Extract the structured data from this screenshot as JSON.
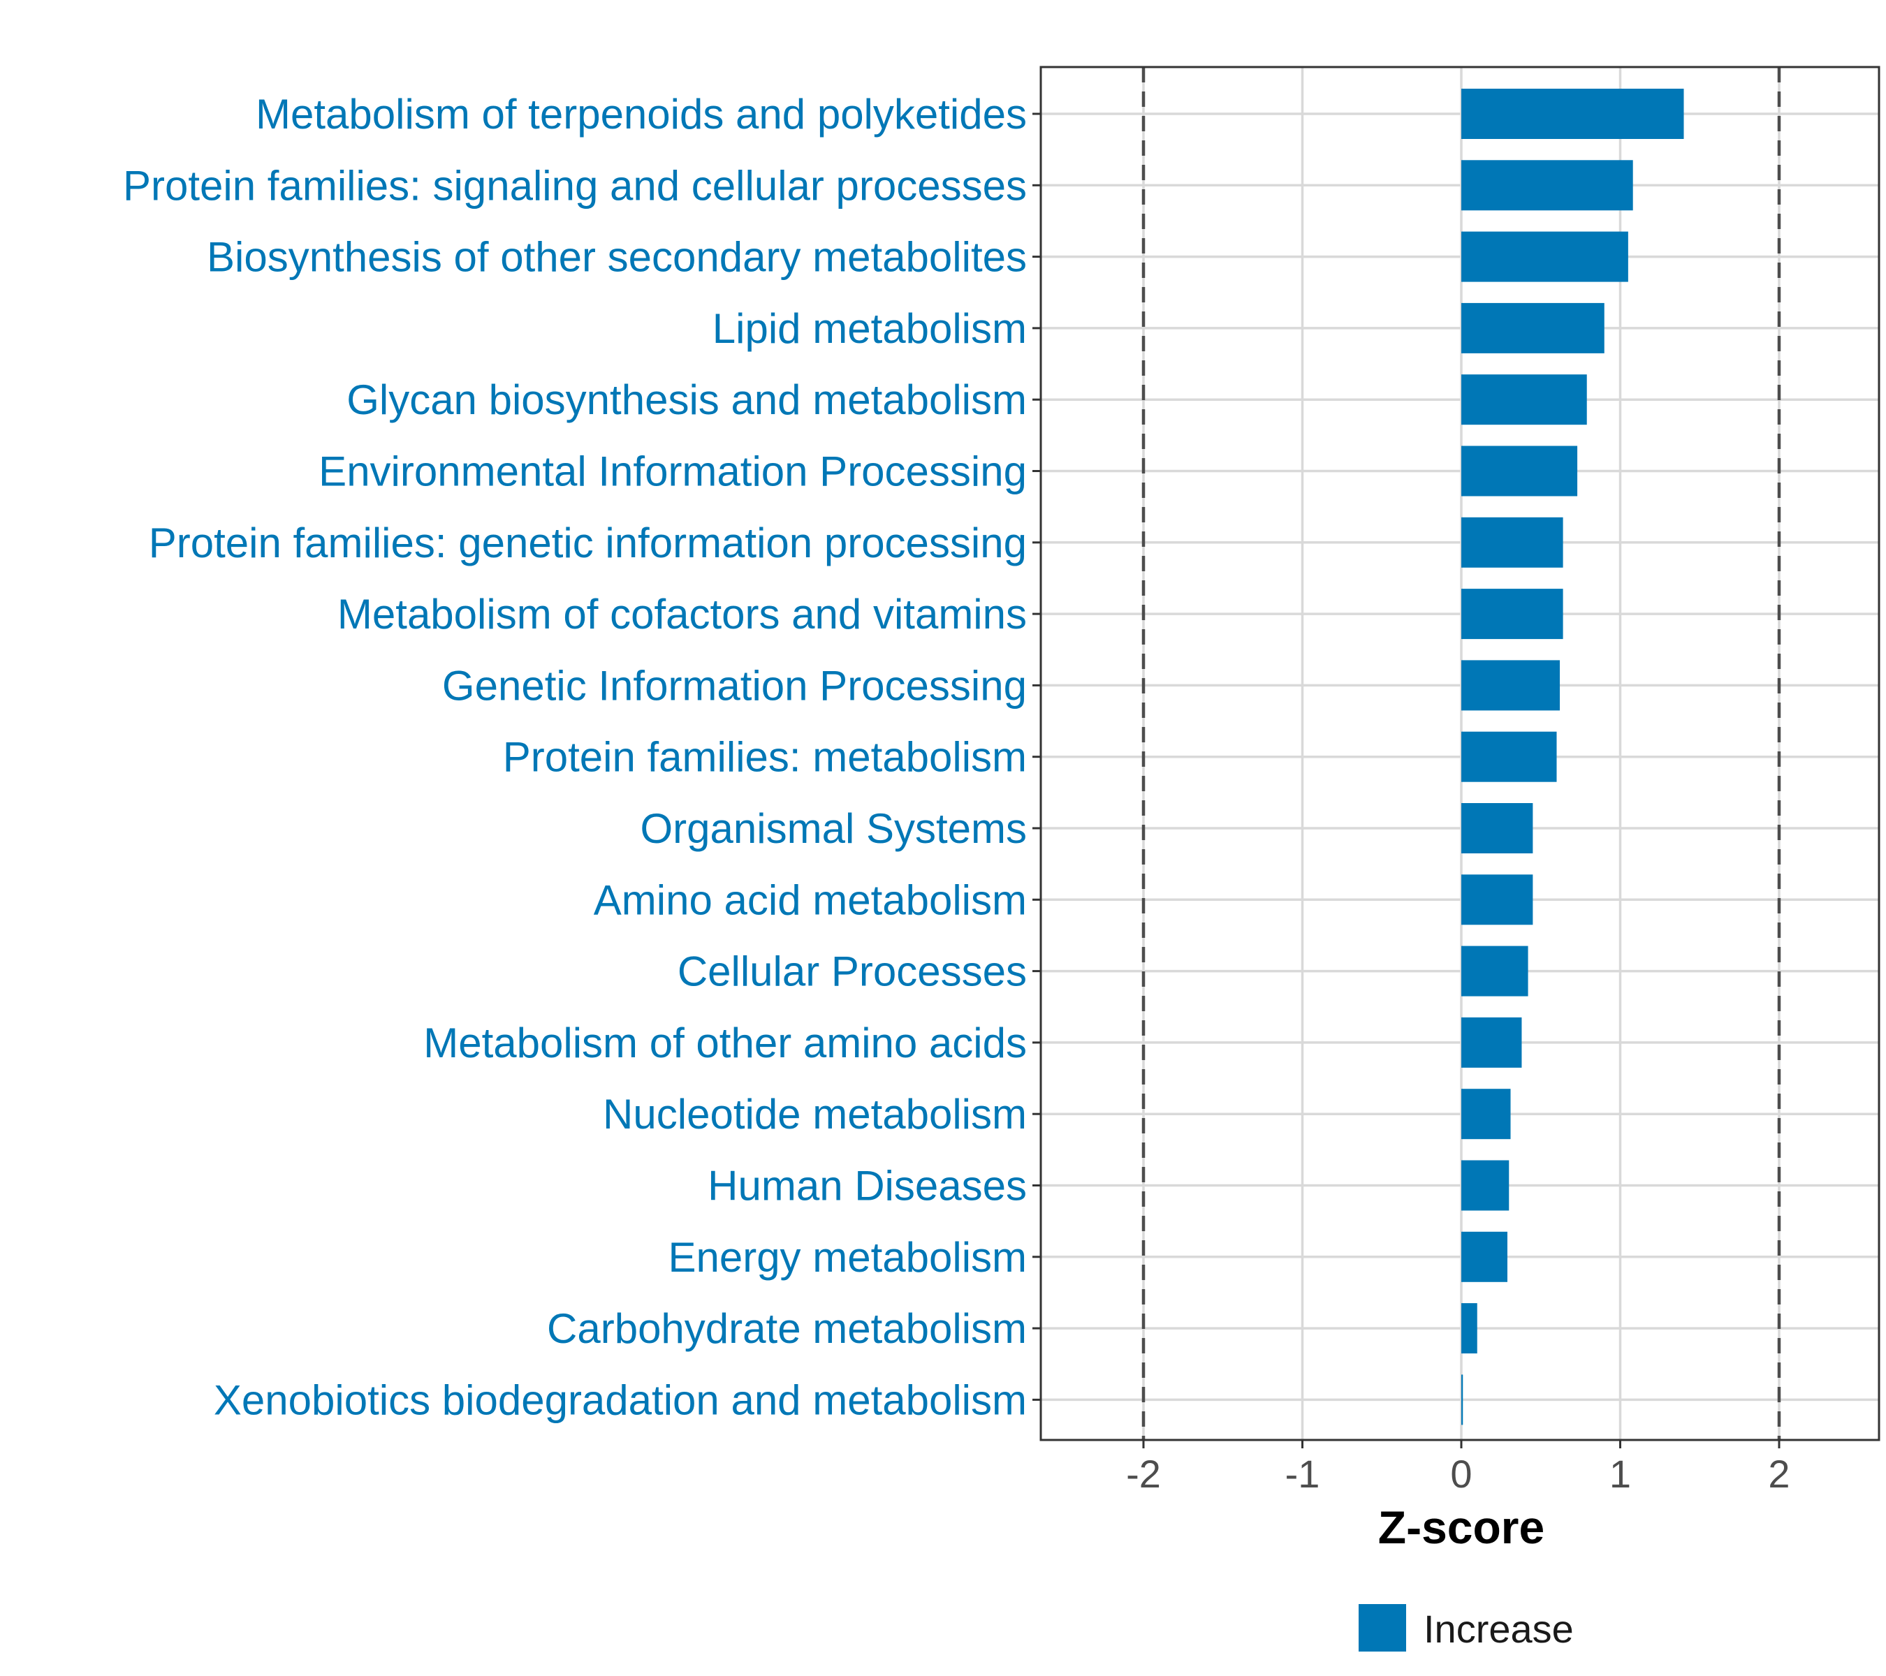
{
  "chart_data": {
    "type": "bar",
    "orientation": "horizontal",
    "title": "",
    "xlabel": "Z-score",
    "ylabel": "",
    "xlim": [
      -2.6,
      2.6
    ],
    "x_ticks": [
      -2,
      -1,
      0,
      1,
      2
    ],
    "x_tick_labels": [
      "-2",
      "-1",
      "0",
      "1",
      "2"
    ],
    "reference_lines": [
      -2,
      2
    ],
    "grid": true,
    "categories": [
      "Metabolism of terpenoids and polyketides",
      "Protein families: signaling and cellular processes",
      "Biosynthesis of other secondary metabolites",
      "Lipid metabolism",
      "Glycan biosynthesis and metabolism",
      "Environmental Information Processing",
      "Protein families: genetic information processing",
      "Metabolism of cofactors and vitamins",
      "Genetic Information Processing",
      "Protein families: metabolism",
      "Organismal Systems",
      "Amino acid metabolism",
      "Cellular Processes",
      "Metabolism of other amino acids",
      "Nucleotide metabolism",
      "Human Diseases",
      "Energy metabolism",
      "Carbohydrate metabolism",
      "Xenobiotics biodegradation and metabolism"
    ],
    "series": [
      {
        "name": "Increase",
        "color": "#0077b6",
        "values": [
          1.4,
          1.08,
          1.05,
          0.9,
          0.79,
          0.73,
          0.64,
          0.64,
          0.62,
          0.6,
          0.45,
          0.45,
          0.42,
          0.38,
          0.31,
          0.3,
          0.29,
          0.1,
          0.01
        ]
      }
    ],
    "legend": {
      "position": "bottom",
      "entries": [
        "Increase"
      ]
    }
  },
  "colors": {
    "bar": "#0077b6",
    "label": "#0077b6",
    "grid": "#d9d9d9",
    "panel_border": "#333333",
    "ref_line": "#4d4d4d"
  }
}
